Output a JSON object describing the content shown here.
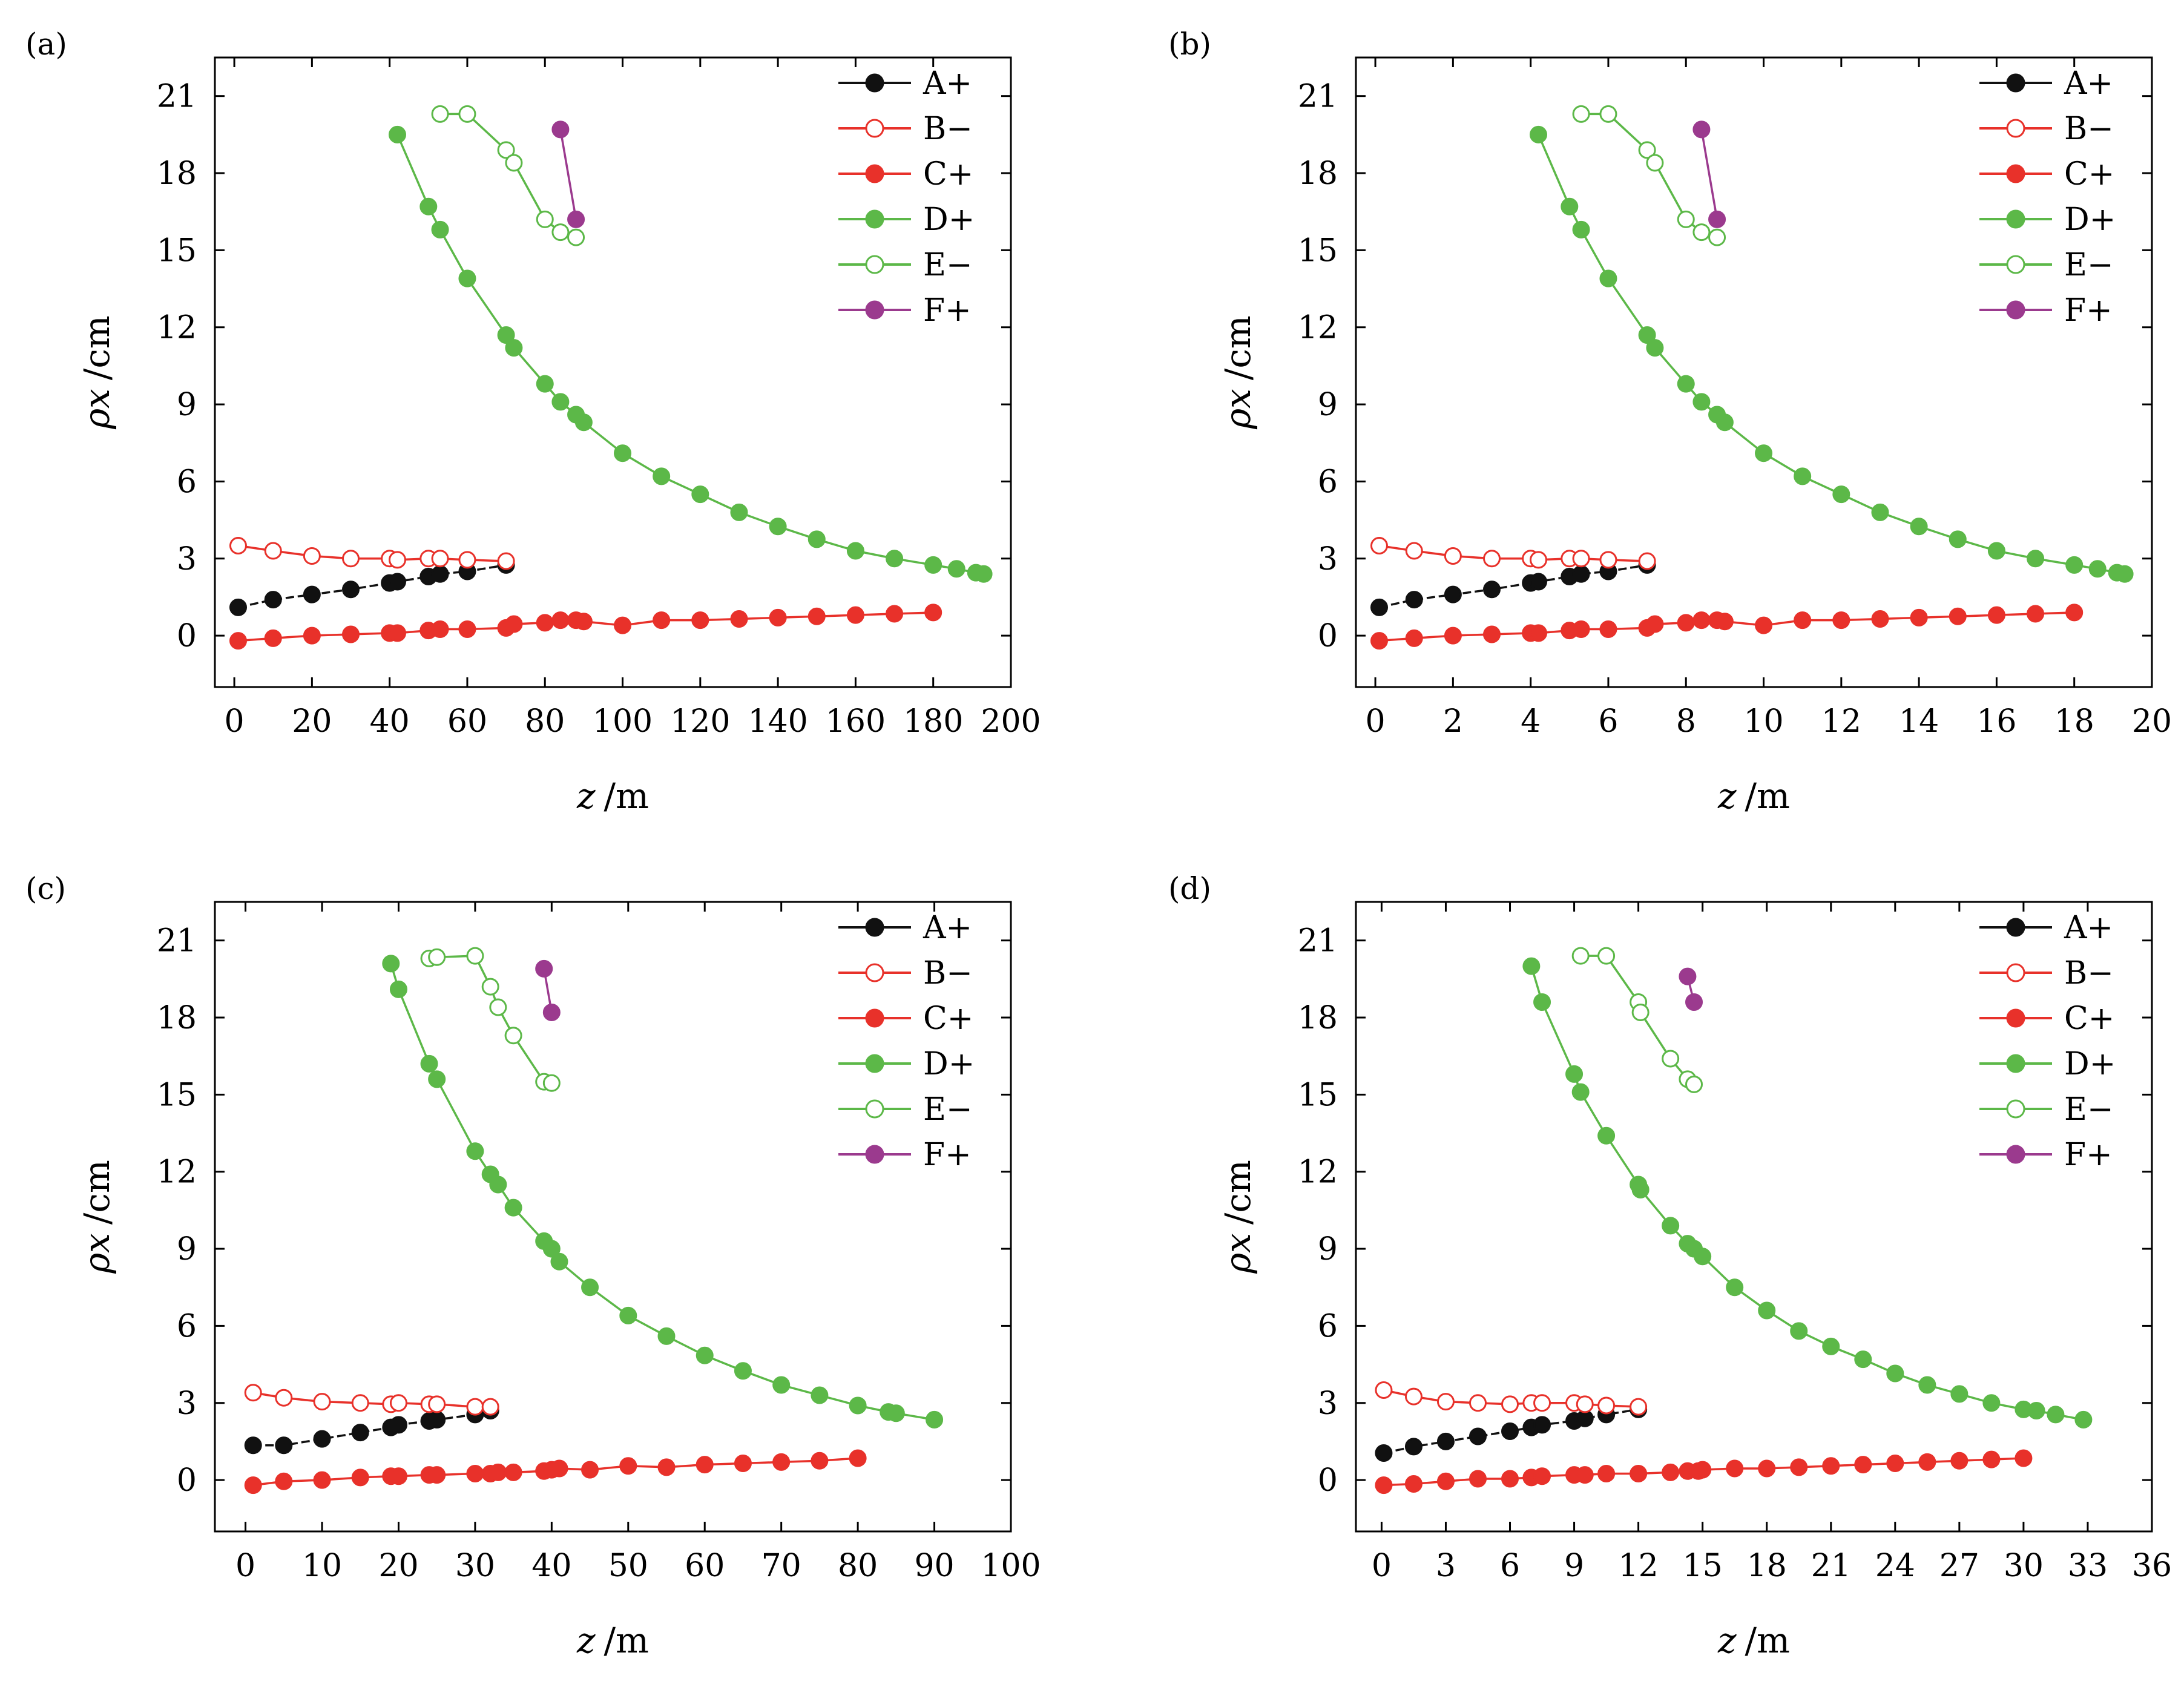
{
  "figure": {
    "legend_labels": [
      "A+",
      "B−",
      "C+",
      "D+",
      "E−",
      "F+"
    ],
    "series_colors": {
      "A+": "#111111",
      "B-": "#e8312a",
      "C+": "#e8312a",
      "D+": "#5cb848",
      "E-": "#5cb848",
      "F+": "#9b3a8e"
    }
  },
  "chart_data": [
    {
      "type": "line",
      "panel": "(a)",
      "xlabel": "z",
      "xunit": "/m",
      "ylabel": "ρx",
      "yunit": "/cm",
      "xlim": [
        -5,
        200
      ],
      "ylim": [
        -2,
        22.5
      ],
      "xticks": [
        0,
        20,
        40,
        60,
        80,
        100,
        120,
        140,
        160,
        180,
        200
      ],
      "yticks": [
        0,
        3,
        6,
        9,
        12,
        15,
        18,
        21
      ],
      "legend_position": "top-right",
      "series": [
        {
          "name": "A+",
          "marker": "filled",
          "x": [
            1,
            10,
            20,
            30,
            40,
            42,
            50,
            53,
            60,
            70
          ],
          "y": [
            1.1,
            1.4,
            1.6,
            1.8,
            2.05,
            2.1,
            2.3,
            2.4,
            2.5,
            2.75
          ]
        },
        {
          "name": "B−",
          "marker": "open",
          "x": [
            1,
            10,
            20,
            30,
            40,
            42,
            50,
            53,
            60,
            70
          ],
          "y": [
            3.5,
            3.3,
            3.1,
            3.0,
            3.0,
            2.95,
            3.0,
            3.0,
            2.95,
            2.9
          ]
        },
        {
          "name": "C+",
          "marker": "filled",
          "x": [
            1,
            10,
            20,
            30,
            40,
            42,
            50,
            53,
            60,
            70,
            72,
            80,
            84,
            88,
            90,
            100,
            110,
            120,
            130,
            140,
            150,
            160,
            170,
            180
          ],
          "y": [
            -0.2,
            -0.1,
            0.0,
            0.05,
            0.1,
            0.1,
            0.2,
            0.25,
            0.25,
            0.3,
            0.45,
            0.5,
            0.6,
            0.6,
            0.55,
            0.4,
            0.6,
            0.6,
            0.65,
            0.7,
            0.75,
            0.8,
            0.85,
            0.9
          ]
        },
        {
          "name": "D+",
          "marker": "filled",
          "x": [
            42,
            50,
            53,
            60,
            70,
            72,
            80,
            84,
            88,
            90,
            100,
            110,
            120,
            130,
            140,
            150,
            160,
            170,
            180,
            186,
            191,
            193
          ],
          "y": [
            19.5,
            16.7,
            15.8,
            13.9,
            11.7,
            11.2,
            9.8,
            9.1,
            8.6,
            8.3,
            7.1,
            6.2,
            5.5,
            4.8,
            4.25,
            3.75,
            3.3,
            3.0,
            2.75,
            2.6,
            2.45,
            2.4
          ]
        },
        {
          "name": "E−",
          "marker": "open",
          "x": [
            53,
            60,
            70,
            72,
            80,
            84,
            88
          ],
          "y": [
            20.3,
            20.3,
            18.9,
            18.4,
            16.2,
            15.7,
            15.5
          ]
        },
        {
          "name": "F+",
          "marker": "filled",
          "x": [
            84,
            88
          ],
          "y": [
            19.7,
            16.2
          ]
        }
      ]
    },
    {
      "type": "line",
      "panel": "(b)",
      "xlabel": "z",
      "xunit": "/m",
      "ylabel": "ρx",
      "yunit": "/cm",
      "xlim": [
        -0.5,
        20
      ],
      "ylim": [
        -2,
        22.5
      ],
      "xticks": [
        0,
        2,
        4,
        6,
        8,
        10,
        12,
        14,
        16,
        18,
        20
      ],
      "yticks": [
        0,
        3,
        6,
        9,
        12,
        15,
        18,
        21
      ],
      "legend_position": "top-right",
      "series": [
        {
          "name": "A+",
          "marker": "filled",
          "x": [
            0.1,
            1,
            2,
            3,
            4,
            4.2,
            5,
            5.3,
            6,
            7
          ],
          "y": [
            1.1,
            1.4,
            1.6,
            1.8,
            2.05,
            2.1,
            2.3,
            2.4,
            2.5,
            2.75
          ]
        },
        {
          "name": "B−",
          "marker": "open",
          "x": [
            0.1,
            1,
            2,
            3,
            4,
            4.2,
            5,
            5.3,
            6,
            7
          ],
          "y": [
            3.5,
            3.3,
            3.1,
            3.0,
            3.0,
            2.95,
            3.0,
            3.0,
            2.95,
            2.9
          ]
        },
        {
          "name": "C+",
          "marker": "filled",
          "x": [
            0.1,
            1,
            2,
            3,
            4,
            4.2,
            5,
            5.3,
            6,
            7,
            7.2,
            8,
            8.4,
            8.8,
            9,
            10,
            11,
            12,
            13,
            14,
            15,
            16,
            17,
            18
          ],
          "y": [
            -0.2,
            -0.1,
            0.0,
            0.05,
            0.1,
            0.1,
            0.2,
            0.25,
            0.25,
            0.3,
            0.45,
            0.5,
            0.6,
            0.6,
            0.55,
            0.4,
            0.6,
            0.6,
            0.65,
            0.7,
            0.75,
            0.8,
            0.85,
            0.9
          ]
        },
        {
          "name": "D+",
          "marker": "filled",
          "x": [
            4.2,
            5,
            5.3,
            6,
            7,
            7.2,
            8,
            8.4,
            8.8,
            9,
            10,
            11,
            12,
            13,
            14,
            15,
            16,
            17,
            18,
            18.6,
            19.1,
            19.3
          ],
          "y": [
            19.5,
            16.7,
            15.8,
            13.9,
            11.7,
            11.2,
            9.8,
            9.1,
            8.6,
            8.3,
            7.1,
            6.2,
            5.5,
            4.8,
            4.25,
            3.75,
            3.3,
            3.0,
            2.75,
            2.6,
            2.45,
            2.4
          ]
        },
        {
          "name": "E−",
          "marker": "open",
          "x": [
            5.3,
            6,
            7,
            7.2,
            8,
            8.4,
            8.8
          ],
          "y": [
            20.3,
            20.3,
            18.9,
            18.4,
            16.2,
            15.7,
            15.5
          ]
        },
        {
          "name": "F+",
          "marker": "filled",
          "x": [
            8.4,
            8.8
          ],
          "y": [
            19.7,
            16.2
          ]
        }
      ]
    },
    {
      "type": "line",
      "panel": "(c)",
      "xlabel": "z",
      "xunit": "/m",
      "ylabel": "ρx",
      "yunit": "/cm",
      "xlim": [
        -4,
        100
      ],
      "ylim": [
        -2,
        22.5
      ],
      "xticks": [
        0,
        10,
        20,
        30,
        40,
        50,
        60,
        70,
        80,
        90,
        100
      ],
      "yticks": [
        0,
        3,
        6,
        9,
        12,
        15,
        18,
        21
      ],
      "legend_position": "top-right",
      "series": [
        {
          "name": "A+",
          "marker": "filled",
          "x": [
            1,
            5,
            10,
            15,
            19,
            20,
            24,
            25,
            30,
            32
          ],
          "y": [
            1.35,
            1.35,
            1.6,
            1.85,
            2.05,
            2.15,
            2.3,
            2.35,
            2.55,
            2.7
          ]
        },
        {
          "name": "B−",
          "marker": "open",
          "x": [
            1,
            5,
            10,
            15,
            19,
            20,
            24,
            25,
            30,
            32
          ],
          "y": [
            3.4,
            3.2,
            3.05,
            3.0,
            2.95,
            3.0,
            2.95,
            2.95,
            2.85,
            2.85
          ]
        },
        {
          "name": "C+",
          "marker": "filled",
          "x": [
            1,
            5,
            10,
            15,
            19,
            20,
            24,
            25,
            30,
            32,
            33,
            35,
            39,
            40,
            41,
            45,
            50,
            55,
            60,
            65,
            70,
            75,
            80
          ],
          "y": [
            -0.2,
            -0.05,
            0.0,
            0.1,
            0.15,
            0.15,
            0.2,
            0.2,
            0.25,
            0.25,
            0.3,
            0.3,
            0.35,
            0.4,
            0.45,
            0.4,
            0.55,
            0.5,
            0.6,
            0.65,
            0.7,
            0.75,
            0.85
          ]
        },
        {
          "name": "D+",
          "marker": "filled",
          "x": [
            19,
            20,
            24,
            25,
            30,
            32,
            33,
            35,
            39,
            40,
            41,
            45,
            50,
            55,
            60,
            65,
            70,
            75,
            80,
            84,
            85,
            90
          ],
          "y": [
            20.1,
            19.1,
            16.2,
            15.6,
            12.8,
            11.9,
            11.5,
            10.6,
            9.3,
            9.0,
            8.5,
            7.5,
            6.4,
            5.6,
            4.85,
            4.25,
            3.7,
            3.3,
            2.9,
            2.65,
            2.6,
            2.35
          ]
        },
        {
          "name": "E−",
          "marker": "open",
          "x": [
            24,
            25,
            30,
            32,
            33,
            35,
            39,
            40
          ],
          "y": [
            20.3,
            20.35,
            20.4,
            19.2,
            18.4,
            17.3,
            15.5,
            15.45
          ]
        },
        {
          "name": "F+",
          "marker": "filled",
          "x": [
            39,
            40
          ],
          "y": [
            19.9,
            18.2
          ]
        }
      ]
    },
    {
      "type": "line",
      "panel": "(d)",
      "xlabel": "z",
      "xunit": "/m",
      "ylabel": "ρx",
      "yunit": "/cm",
      "xlim": [
        -1.2,
        36
      ],
      "ylim": [
        -2,
        22.5
      ],
      "xticks": [
        0,
        3,
        6,
        9,
        12,
        15,
        18,
        21,
        24,
        27,
        30,
        33,
        36
      ],
      "yticks": [
        0,
        3,
        6,
        9,
        12,
        15,
        18,
        21
      ],
      "legend_position": "top-right",
      "series": [
        {
          "name": "A+",
          "marker": "filled",
          "x": [
            0.1,
            1.5,
            3,
            4.5,
            6,
            7,
            7.5,
            9,
            9.5,
            10.5,
            12
          ],
          "y": [
            1.05,
            1.3,
            1.5,
            1.7,
            1.9,
            2.05,
            2.15,
            2.3,
            2.4,
            2.55,
            2.75
          ]
        },
        {
          "name": "B−",
          "marker": "open",
          "x": [
            0.1,
            1.5,
            3,
            4.5,
            6,
            7,
            7.5,
            9,
            9.5,
            10.5,
            12
          ],
          "y": [
            3.5,
            3.25,
            3.05,
            3.0,
            2.95,
            3.0,
            3.0,
            3.0,
            2.95,
            2.9,
            2.85
          ]
        },
        {
          "name": "C+",
          "marker": "filled",
          "x": [
            0.1,
            1.5,
            3,
            4.5,
            6,
            7,
            7.5,
            9,
            9.5,
            10.5,
            12,
            13.5,
            14.3,
            14.8,
            15,
            16.5,
            18,
            19.5,
            21,
            22.5,
            24,
            25.5,
            27,
            28.5,
            30
          ],
          "y": [
            -0.2,
            -0.15,
            -0.05,
            0.05,
            0.05,
            0.1,
            0.15,
            0.2,
            0.2,
            0.25,
            0.25,
            0.3,
            0.35,
            0.35,
            0.4,
            0.45,
            0.45,
            0.5,
            0.55,
            0.6,
            0.65,
            0.7,
            0.75,
            0.8,
            0.85
          ]
        },
        {
          "name": "D+",
          "marker": "filled",
          "x": [
            7,
            7.5,
            9,
            9.3,
            10.5,
            12,
            12.1,
            13.5,
            14.3,
            14.6,
            15,
            16.5,
            18,
            19.5,
            21,
            22.5,
            24,
            25.5,
            27,
            28.5,
            30,
            30.6,
            31.5,
            32.8
          ],
          "y": [
            20.0,
            18.6,
            15.8,
            15.1,
            13.4,
            11.5,
            11.3,
            9.9,
            9.2,
            9.0,
            8.7,
            7.5,
            6.6,
            5.8,
            5.2,
            4.7,
            4.15,
            3.7,
            3.35,
            3.0,
            2.75,
            2.7,
            2.55,
            2.35
          ]
        },
        {
          "name": "E−",
          "marker": "open",
          "x": [
            9.3,
            10.5,
            12,
            12.1,
            13.5,
            14.3,
            14.6
          ],
          "y": [
            20.4,
            20.4,
            18.6,
            18.2,
            16.4,
            15.6,
            15.4
          ]
        },
        {
          "name": "F+",
          "marker": "filled",
          "x": [
            14.3,
            14.6
          ],
          "y": [
            19.6,
            18.6
          ]
        }
      ]
    }
  ]
}
